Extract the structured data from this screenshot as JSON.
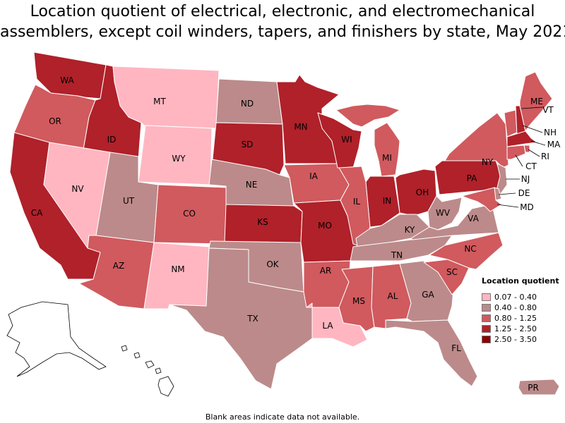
{
  "title_lines": [
    "Location quotient of electrical, electronic, and electromechanical",
    "assemblers, except coil winders, tapers, and finishers by state, May 2021"
  ],
  "note": "Blank areas indicate data not available.",
  "legend": {
    "title": "Location quotient",
    "items": [
      {
        "label": "0.07 - 0.40",
        "color": "#ffb6c1"
      },
      {
        "label": "0.40 - 0.80",
        "color": "#bc8a8a"
      },
      {
        "label": "0.80 - 1.25",
        "color": "#d05a5e"
      },
      {
        "label": "1.25 - 2.50",
        "color": "#b0212a"
      },
      {
        "label": "2.50 - 3.50",
        "color": "#8b0000"
      }
    ]
  },
  "states": [
    {
      "abbr": "WA",
      "bin": 3
    },
    {
      "abbr": "OR",
      "bin": 2
    },
    {
      "abbr": "CA",
      "bin": 3
    },
    {
      "abbr": "ID",
      "bin": 3
    },
    {
      "abbr": "NV",
      "bin": 0
    },
    {
      "abbr": "MT",
      "bin": 0
    },
    {
      "abbr": "WY",
      "bin": 0
    },
    {
      "abbr": "UT",
      "bin": 1
    },
    {
      "abbr": "AZ",
      "bin": 2
    },
    {
      "abbr": "CO",
      "bin": 2
    },
    {
      "abbr": "NM",
      "bin": 0
    },
    {
      "abbr": "ND",
      "bin": 1
    },
    {
      "abbr": "SD",
      "bin": 3
    },
    {
      "abbr": "NE",
      "bin": 1
    },
    {
      "abbr": "KS",
      "bin": 3
    },
    {
      "abbr": "OK",
      "bin": 1
    },
    {
      "abbr": "TX",
      "bin": 1
    },
    {
      "abbr": "MN",
      "bin": 3
    },
    {
      "abbr": "IA",
      "bin": 2
    },
    {
      "abbr": "MO",
      "bin": 3
    },
    {
      "abbr": "AR",
      "bin": 2
    },
    {
      "abbr": "LA",
      "bin": 0
    },
    {
      "abbr": "WI",
      "bin": 3
    },
    {
      "abbr": "IL",
      "bin": 2
    },
    {
      "abbr": "MI",
      "bin": 2
    },
    {
      "abbr": "IN",
      "bin": 3
    },
    {
      "abbr": "OH",
      "bin": 3
    },
    {
      "abbr": "KY",
      "bin": 1
    },
    {
      "abbr": "TN",
      "bin": 1
    },
    {
      "abbr": "MS",
      "bin": 2
    },
    {
      "abbr": "AL",
      "bin": 2
    },
    {
      "abbr": "GA",
      "bin": 1
    },
    {
      "abbr": "FL",
      "bin": 1
    },
    {
      "abbr": "SC",
      "bin": 2
    },
    {
      "abbr": "NC",
      "bin": 2
    },
    {
      "abbr": "VA",
      "bin": 1
    },
    {
      "abbr": "WV",
      "bin": 1
    },
    {
      "abbr": "PA",
      "bin": 3
    },
    {
      "abbr": "NY",
      "bin": 2
    },
    {
      "abbr": "VT",
      "bin": 2
    },
    {
      "abbr": "NH",
      "bin": 3
    },
    {
      "abbr": "ME",
      "bin": 2
    },
    {
      "abbr": "MA",
      "bin": 3
    },
    {
      "abbr": "RI",
      "bin": 2
    },
    {
      "abbr": "CT",
      "bin": 2
    },
    {
      "abbr": "NJ",
      "bin": 1
    },
    {
      "abbr": "DE",
      "bin": 1
    },
    {
      "abbr": "MD",
      "bin": 2
    },
    {
      "abbr": "PR",
      "bin": 1
    },
    {
      "abbr": "AK",
      "bin": null
    },
    {
      "abbr": "HI",
      "bin": null
    }
  ]
}
